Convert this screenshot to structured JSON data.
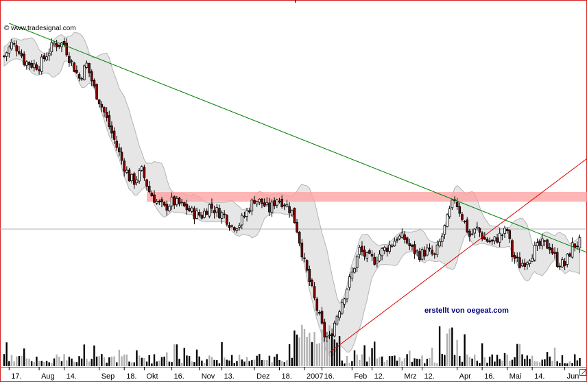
{
  "watermark": "© www.tradesignal.com",
  "annotation": "erstellt von oegeat.com",
  "colors": {
    "border": "#d42020",
    "candle_up": "#ffffff",
    "candle_down": "#8b0000",
    "candle_outline": "#000000",
    "band_fill": "#e6e6e6",
    "band_outline": "#b4b4b4",
    "resistance_zone": "#ff9e9e",
    "trend_down": "#008000",
    "trend_up": "#e00000",
    "volume_black": "#000000",
    "volume_gray": "#b0b0b0"
  },
  "chart_data": {
    "type": "candlestick",
    "x_ticks": [
      {
        "label": "17.",
        "d": 2
      },
      {
        "label": "Aug",
        "d": 14
      },
      {
        "label": "14.",
        "d": 24
      },
      {
        "label": "Sep",
        "d": 38
      },
      {
        "label": "18.",
        "d": 48
      },
      {
        "label": "Okt",
        "d": 56
      },
      {
        "label": "16.",
        "d": 67
      },
      {
        "label": "Nov",
        "d": 78
      },
      {
        "label": "13.",
        "d": 87
      },
      {
        "label": "Dez",
        "d": 100
      },
      {
        "label": "18.",
        "d": 110
      },
      {
        "label": "2007",
        "d": 120
      },
      {
        "label": "16.",
        "d": 127
      },
      {
        "label": "Feb",
        "d": 139
      },
      {
        "label": "12.",
        "d": 147
      },
      {
        "label": "Mrz",
        "d": 159
      },
      {
        "label": "12.",
        "d": 167
      },
      {
        "label": "Apr",
        "d": 181
      },
      {
        "label": "16.",
        "d": 191
      },
      {
        "label": "Mai",
        "d": 201
      },
      {
        "label": "14.",
        "d": 211
      },
      {
        "label": "Jun",
        "d": 224
      }
    ],
    "grid": false,
    "legend": "none",
    "horizontal_line": 200,
    "resistance_zone": [
      240,
      254
    ],
    "trendlines": [
      {
        "name": "",
        "color": "trend_down",
        "from": [
          2,
          500
        ],
        "to": [
          230,
          170
        ]
      },
      {
        "name": "",
        "color": "trend_up",
        "from": [
          130,
          20
        ],
        "to": [
          230,
          295
        ]
      }
    ],
    "series": {
      "bands": "price ± deviation",
      "price_anchors": [
        [
          0,
          452
        ],
        [
          3,
          470
        ],
        [
          6,
          462
        ],
        [
          8,
          445
        ],
        [
          11,
          440
        ],
        [
          14,
          438
        ],
        [
          17,
          455
        ],
        [
          20,
          470
        ],
        [
          24,
          470
        ],
        [
          26,
          450
        ],
        [
          30,
          420
        ],
        [
          33,
          440
        ],
        [
          36,
          405
        ],
        [
          40,
          370
        ],
        [
          44,
          330
        ],
        [
          47,
          300
        ],
        [
          50,
          275
        ],
        [
          52,
          270
        ],
        [
          55,
          285
        ],
        [
          58,
          255
        ],
        [
          61,
          240
        ],
        [
          64,
          230
        ],
        [
          67,
          240
        ],
        [
          70,
          236
        ],
        [
          73,
          230
        ],
        [
          76,
          222
        ],
        [
          79,
          220
        ],
        [
          82,
          234
        ],
        [
          85,
          226
        ],
        [
          88,
          220
        ],
        [
          91,
          204
        ],
        [
          94,
          208
        ],
        [
          97,
          225
        ],
        [
          100,
          244
        ],
        [
          103,
          238
        ],
        [
          106,
          228
        ],
        [
          109,
          245
        ],
        [
          112,
          238
        ],
        [
          115,
          225
        ],
        [
          117,
          200
        ],
        [
          120,
          150
        ],
        [
          123,
          110
        ],
        [
          126,
          70
        ],
        [
          128,
          45
        ],
        [
          130,
          40
        ],
        [
          133,
          75
        ],
        [
          136,
          105
        ],
        [
          139,
          135
        ],
        [
          142,
          170
        ],
        [
          145,
          158
        ],
        [
          148,
          155
        ],
        [
          151,
          168
        ],
        [
          154,
          176
        ],
        [
          157,
          188
        ],
        [
          160,
          186
        ],
        [
          163,
          170
        ],
        [
          166,
          163
        ],
        [
          169,
          168
        ],
        [
          172,
          160
        ],
        [
          175,
          190
        ],
        [
          178,
          225
        ],
        [
          180,
          245
        ],
        [
          183,
          218
        ],
        [
          186,
          190
        ],
        [
          189,
          200
        ],
        [
          192,
          185
        ],
        [
          195,
          180
        ],
        [
          198,
          190
        ],
        [
          201,
          198
        ],
        [
          203,
          162
        ],
        [
          206,
          148
        ],
        [
          209,
          156
        ],
        [
          212,
          170
        ],
        [
          215,
          178
        ],
        [
          218,
          175
        ],
        [
          221,
          152
        ],
        [
          224,
          148
        ],
        [
          227,
          175
        ],
        [
          230,
          180
        ]
      ]
    }
  }
}
